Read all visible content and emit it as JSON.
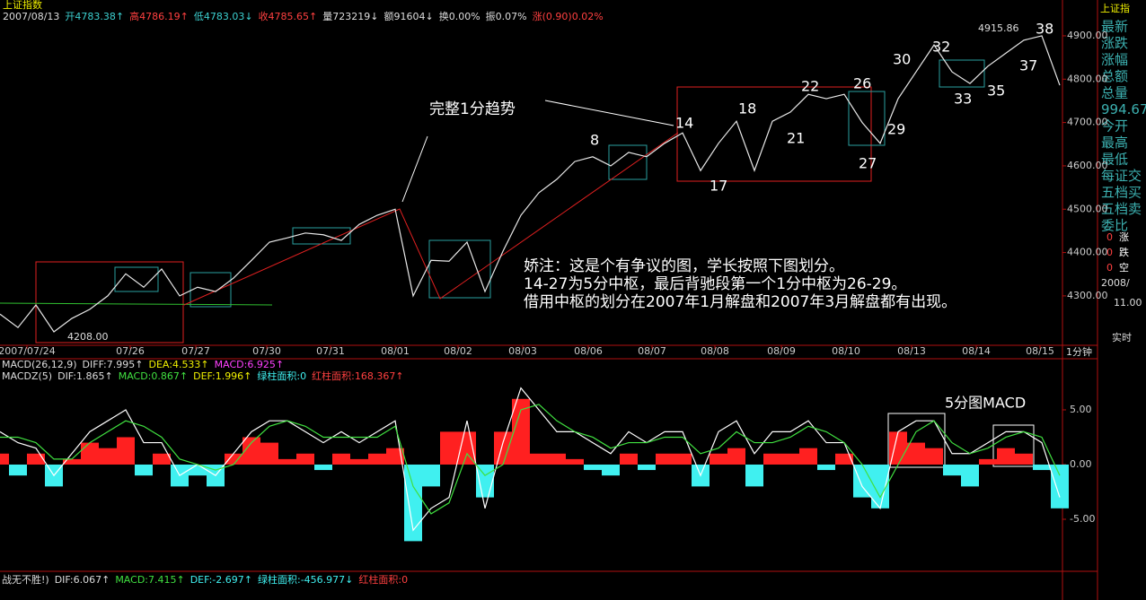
{
  "header": {
    "title": "上证指数",
    "fields": [
      "2007/08/13",
      "开4783.38↑",
      "高4786.19↑",
      "低4783.03↓",
      "收4785.65↑",
      "量723219↓",
      "额91604↓",
      "换0.00%",
      "振0.07%",
      "涨(0.90)0.02%"
    ]
  },
  "annotations": {
    "trend": "完整1分趋势",
    "note": [
      "娇注：这是个有争议的图，学长按照下图划分。",
      "14-27为5分中枢，最后背驰段第一个1分中枢为26-29。",
      "借用中枢的划分在2007年1月解盘和2007年3月解盘都有出现。"
    ],
    "points": [
      "8",
      "14",
      "17",
      "18",
      "21",
      "22",
      "26",
      "27",
      "29",
      "30",
      "32",
      "33",
      "35",
      "37",
      "38"
    ],
    "high": "4915.86",
    "low": "4208.00",
    "macd_note": "5分图MACD",
    "period": "1分钟"
  },
  "indicators": {
    "line1": [
      "MACD(26,12,9)",
      "DIFF:7.995↑",
      "DEA:4.533↑",
      "MACD:6.925↑"
    ],
    "line2": [
      "MACDZ(5)",
      "DIF:1.865↑",
      "MACD:0.867↑",
      "DEF:1.996↑",
      "绿柱面积:0",
      "红柱面积:168.367↑"
    ],
    "line3": [
      "战无不胜!)",
      "DIF:6.067↑",
      "MACD:7.415↑",
      "DEF:-2.697↑",
      "绿柱面积:-456.977↓",
      "红柱面积:0"
    ]
  },
  "sidebar": {
    "title": "上证指",
    "labels": [
      "最新",
      "涨跌",
      "涨幅",
      "总额",
      "总量",
      "994.67",
      "今开",
      "最高",
      "最低",
      "每证交",
      "五档买",
      "五档卖",
      "委比"
    ],
    "counts": [
      "0",
      "涨",
      "0",
      "跌",
      "0",
      "空"
    ],
    "extra": [
      "2008/",
      "11.00",
      "实时"
    ]
  },
  "chart_data": [
    {
      "type": "line",
      "color": "#e8e8e8",
      "values": [
        4258,
        4227,
        4279,
        4217,
        4248,
        4269,
        4300,
        4351,
        4320,
        4362,
        4300,
        4320,
        4310,
        4341,
        4382,
        4424,
        4434,
        4445,
        4441,
        4428,
        4465,
        4486,
        4500,
        4300,
        4382,
        4380,
        4424,
        4310,
        4403,
        4486,
        4538,
        4569,
        4610,
        4621,
        4600,
        4631,
        4621,
        4652,
        4676,
        4589,
        4652,
        4703,
        4589,
        4703,
        4724,
        4765,
        4755,
        4765,
        4700,
        4652,
        4755,
        4817,
        4879,
        4817,
        4790,
        4830,
        4860,
        4890,
        4900,
        4786
      ],
      "xlim": [
        0,
        59.15
      ],
      "ylim": [
        4186,
        4962
      ],
      "yticks": [
        {
          "value": 4300,
          "label": "4300.00"
        },
        {
          "value": 4400,
          "label": "4400.00"
        },
        {
          "value": 4500,
          "label": "4500.00"
        },
        {
          "value": 4600,
          "label": "4600.00"
        },
        {
          "value": 4700,
          "label": "4700.00"
        },
        {
          "value": 4800,
          "label": "4800.00"
        },
        {
          "value": 4900,
          "label": "4900.00"
        }
      ],
      "xticks": [
        {
          "value": 1.5,
          "label": "2007/07/24"
        },
        {
          "value": 7.25,
          "label": "07/26"
        },
        {
          "value": 10.9,
          "label": "07/27"
        },
        {
          "value": 14.85,
          "label": "07/30"
        },
        {
          "value": 18.4,
          "label": "07/31"
        },
        {
          "value": 22,
          "label": "08/01"
        },
        {
          "value": 25.5,
          "label": "08/02"
        },
        {
          "value": 29.1,
          "label": "08/03"
        },
        {
          "value": 32.75,
          "label": "08/06"
        },
        {
          "value": 36.3,
          "label": "08/07"
        },
        {
          "value": 39.8,
          "label": "08/08"
        },
        {
          "value": 43.5,
          "label": "08/09"
        },
        {
          "value": 47.1,
          "label": "08/10"
        },
        {
          "value": 50.75,
          "label": "08/13"
        },
        {
          "value": 54.35,
          "label": "08/14"
        },
        {
          "value": 57.9,
          "label": "08/15"
        }
      ]
    },
    {
      "type": "macd",
      "xlim": [
        0,
        59.15
      ],
      "ylim": [
        -10,
        8.44
      ],
      "bars": [
        1,
        -1,
        1,
        -2,
        0.5,
        2,
        1.5,
        2.5,
        -1,
        1,
        -2,
        -1,
        -2,
        1,
        2.5,
        2,
        0.5,
        1,
        -0.5,
        1,
        0.5,
        1,
        1.5,
        -7,
        -2,
        3,
        3,
        -3,
        3,
        6,
        1,
        1,
        0.5,
        -0.5,
        -1,
        1,
        -0.5,
        1,
        1,
        -2,
        1,
        1.5,
        -2,
        1,
        1,
        1.5,
        -0.5,
        1,
        -3,
        -4,
        3,
        2,
        1.5,
        -1,
        -2,
        0.5,
        1.5,
        1,
        -0.5,
        -4
      ],
      "up_color": "#ff2020",
      "down_color": "#40f0f0",
      "series": [
        {
          "color": "#ffffff",
          "values": [
            3,
            2,
            1.5,
            -1,
            1,
            3,
            4,
            5,
            2,
            2,
            -1,
            0,
            -1,
            1,
            3,
            4,
            4,
            3,
            2,
            3,
            2,
            3,
            4,
            -6,
            -4,
            -3,
            4,
            -4,
            2,
            7,
            5,
            3,
            3,
            2,
            1,
            3,
            2,
            3,
            3,
            -1,
            3,
            4,
            1,
            3,
            3,
            4,
            2,
            2,
            -2,
            -4,
            3,
            4,
            4,
            1,
            1,
            2,
            3,
            3,
            2,
            -3
          ]
        },
        {
          "color": "#40e040",
          "values": [
            2.5,
            2.5,
            2,
            0.5,
            0.5,
            2,
            3,
            4,
            3.5,
            2.5,
            0.5,
            0,
            -0.5,
            0,
            2,
            3.5,
            4,
            3.5,
            2.5,
            2.5,
            2.5,
            2.5,
            3.5,
            -2,
            -4.5,
            -3.5,
            1,
            -1,
            0,
            5,
            5.5,
            4,
            3,
            2.5,
            1.5,
            2,
            2,
            2.5,
            2.5,
            1,
            1.5,
            3,
            2,
            2,
            2.5,
            3.5,
            3,
            2,
            0,
            -3,
            0,
            3,
            4,
            2,
            1,
            1.5,
            2.5,
            3,
            2.5,
            -1
          ]
        }
      ],
      "yticks": [
        {
          "value": 5,
          "label": "5.00"
        },
        {
          "value": 0,
          "label": "0.00"
        },
        {
          "value": -5,
          "label": "-5.00"
        }
      ]
    }
  ]
}
